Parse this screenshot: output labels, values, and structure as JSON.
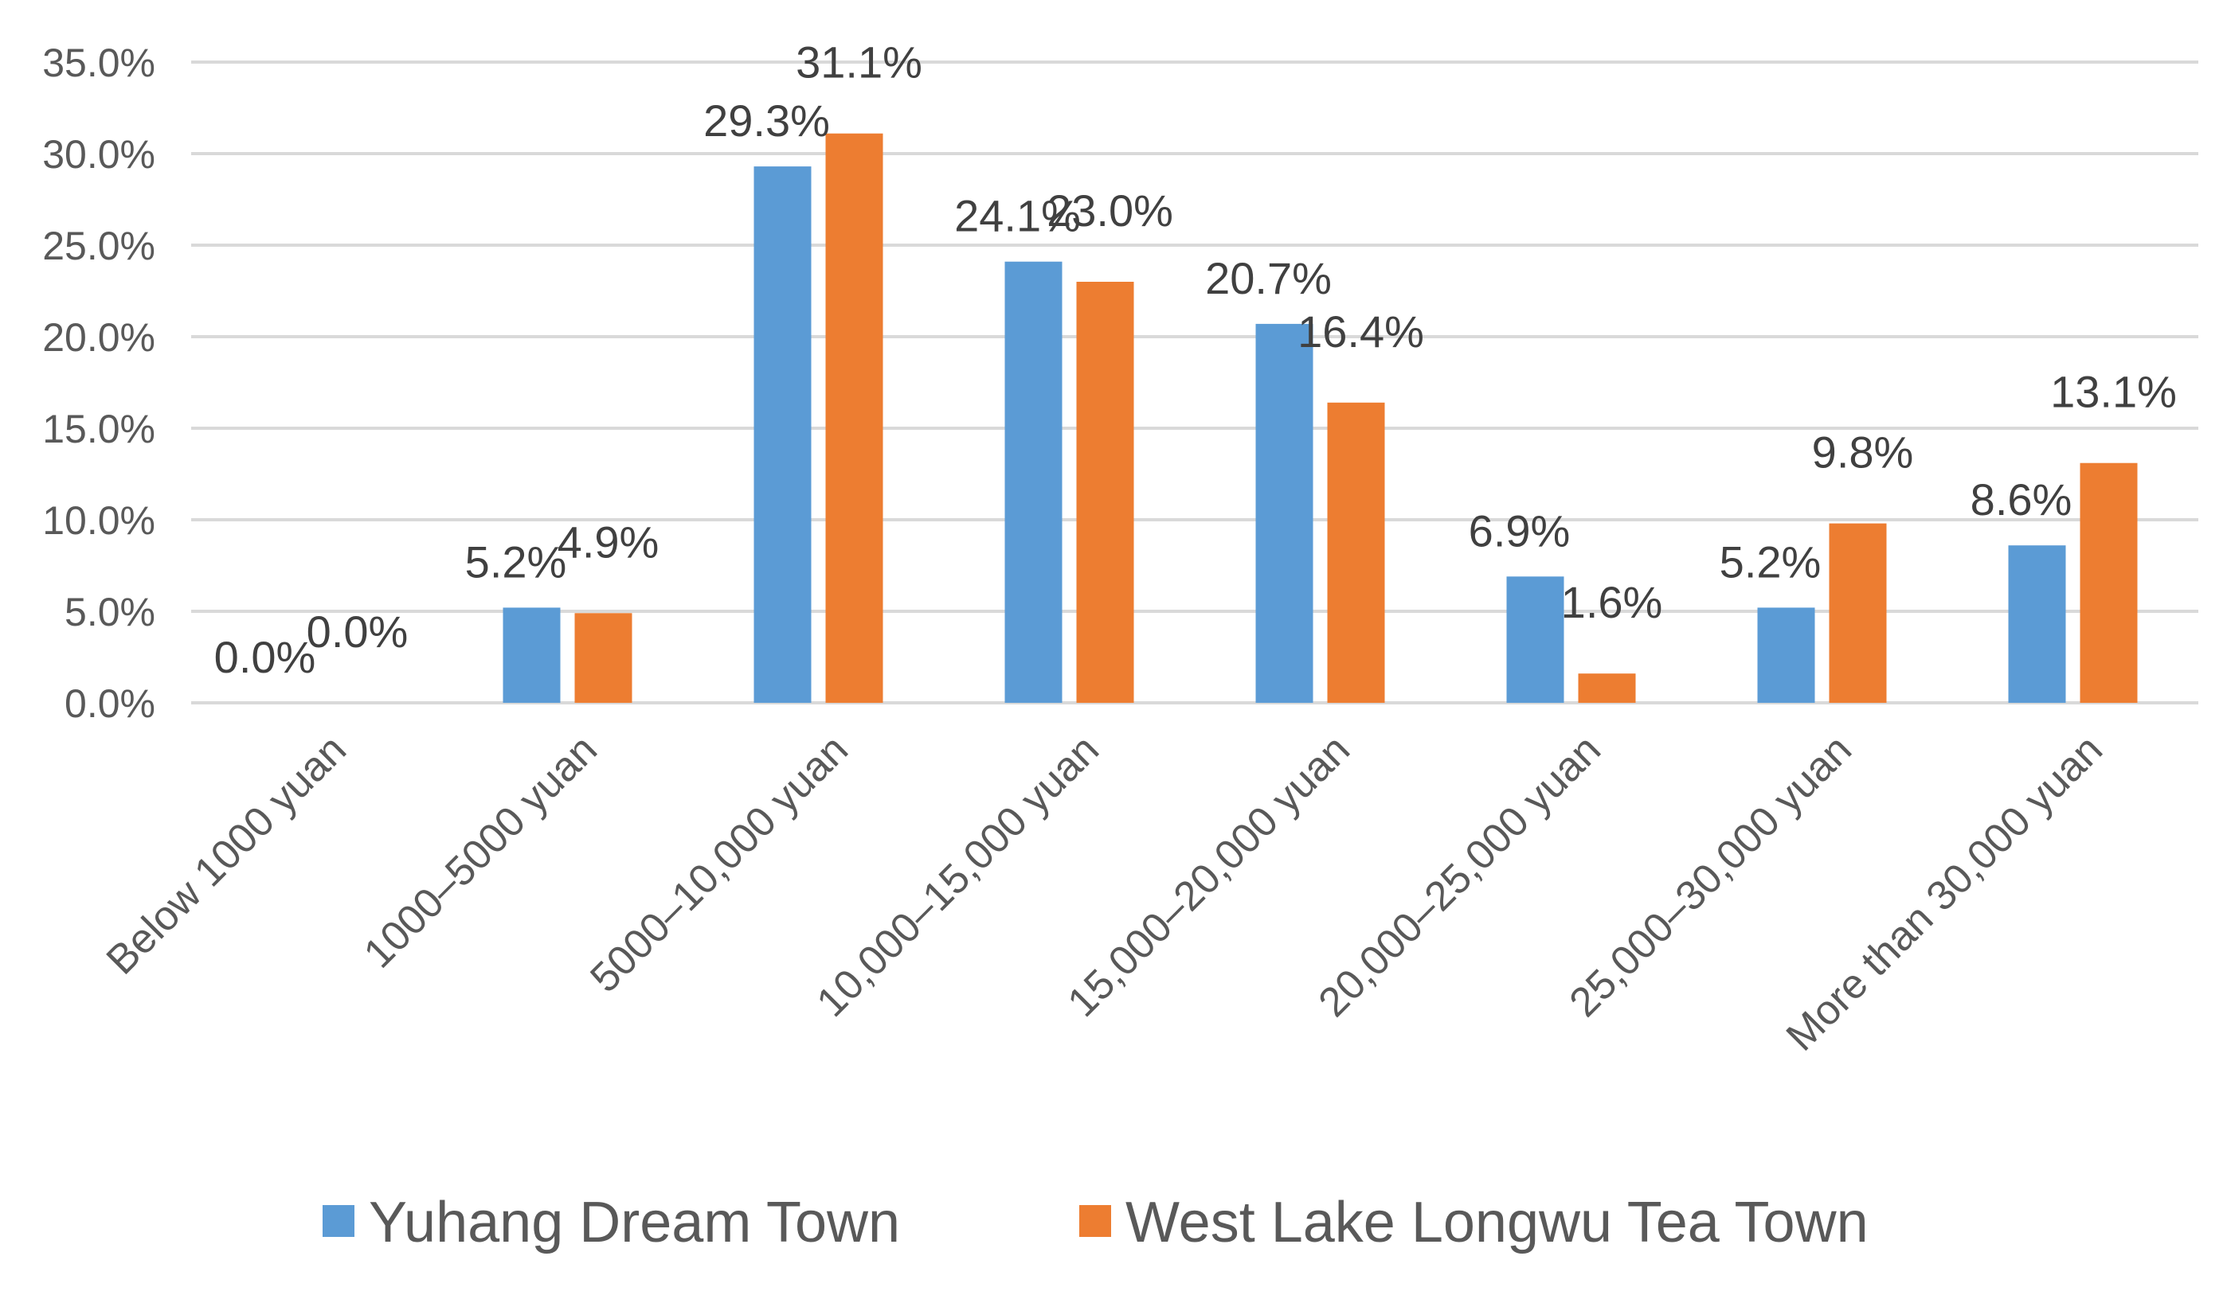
{
  "chart_data": {
    "type": "bar",
    "title": "",
    "xlabel": "",
    "ylabel": "",
    "ylim": [
      0,
      35
    ],
    "y_ticks": [
      "0.0%",
      "5.0%",
      "10.0%",
      "15.0%",
      "20.0%",
      "25.0%",
      "30.0%",
      "35.0%"
    ],
    "grid": true,
    "legend_position": "bottom",
    "categories": [
      "Below 1000 yuan",
      "1000–5000 yuan",
      "5000–10,000 yuan",
      "10,000–15,000 yuan",
      "15,000–20,000 yuan",
      "20,000–25,000 yuan",
      "25,000–30,000 yuan",
      "More than 30,000 yuan"
    ],
    "series": [
      {
        "name": "Yuhang Dream Town",
        "color": "#5b9bd5",
        "values": [
          0.0,
          5.2,
          29.3,
          24.1,
          20.7,
          6.9,
          5.2,
          8.6
        ],
        "labels": [
          "0.0%",
          "5.2%",
          "29.3%",
          "24.1%",
          "20.7%",
          "6.9%",
          "5.2%",
          "8.6%"
        ]
      },
      {
        "name": "West Lake Longwu Tea Town",
        "color": "#ed7d31",
        "values": [
          0.0,
          4.9,
          31.1,
          23.0,
          16.4,
          1.6,
          9.8,
          13.1
        ],
        "labels": [
          "0.0%",
          "4.9%",
          "31.1%",
          "23.0%",
          "16.4%",
          "1.6%",
          "9.8%",
          "13.1%"
        ]
      }
    ]
  }
}
